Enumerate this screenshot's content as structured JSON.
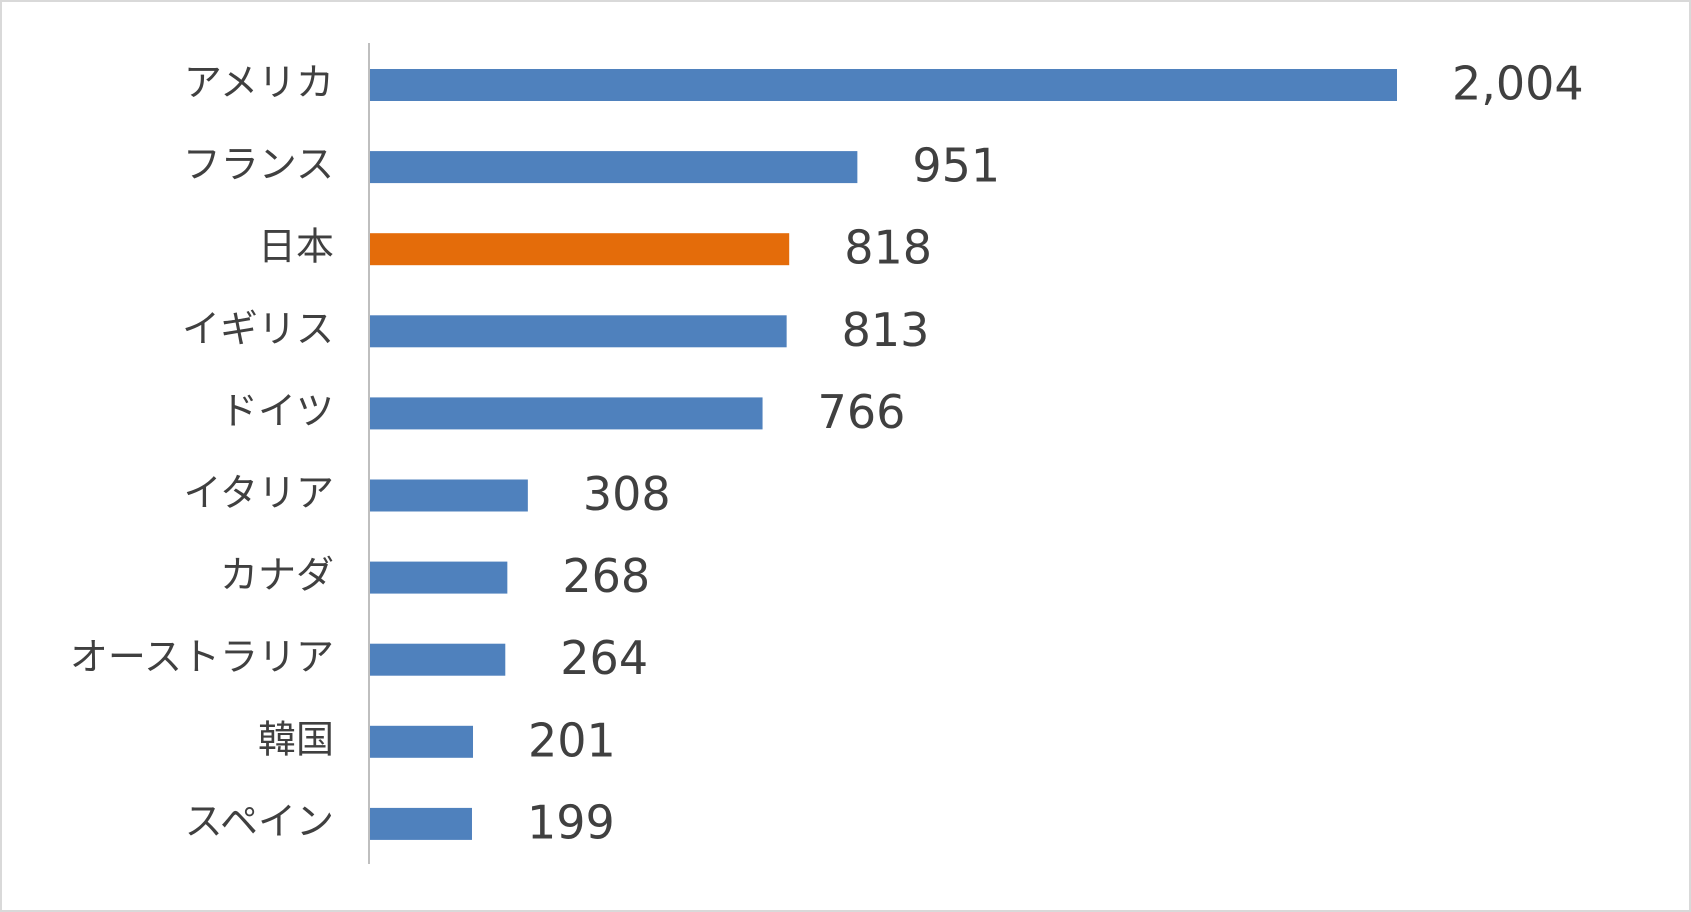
{
  "chart_data": {
    "type": "bar",
    "orientation": "horizontal",
    "categories": [
      "アメリカ",
      "フランス",
      "日本",
      "イギリス",
      "ドイツ",
      "イタリア",
      "カナダ",
      "オーストラリア",
      "韓国",
      "スペイン"
    ],
    "values": [
      2004,
      951,
      818,
      813,
      766,
      308,
      268,
      264,
      201,
      199
    ],
    "value_labels": [
      "2,004",
      "951",
      "818",
      "813",
      "766",
      "308",
      "268",
      "264",
      "201",
      "199"
    ],
    "colors": [
      "#4f81bd",
      "#4f81bd",
      "#e46c0a",
      "#4f81bd",
      "#4f81bd",
      "#4f81bd",
      "#4f81bd",
      "#4f81bd",
      "#4f81bd",
      "#4f81bd"
    ]
  }
}
